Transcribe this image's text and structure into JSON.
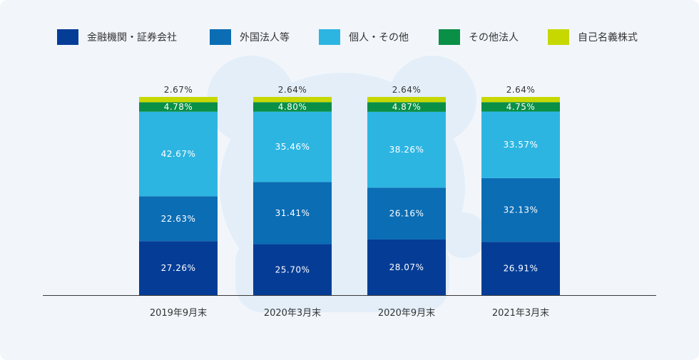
{
  "chart_data": {
    "type": "bar",
    "stacked": true,
    "percent_stacked": true,
    "legend_position": "top",
    "grid": false,
    "ylim": [
      0,
      100
    ],
    "categories": [
      "2019年9月末",
      "2020年3月末",
      "2020年9月末",
      "2021年3月末"
    ],
    "series": [
      {
        "name": "金融機関・証券会社",
        "color": "#053d96",
        "values": [
          27.26,
          25.7,
          28.07,
          26.91
        ],
        "labels": [
          "27.26%",
          "25.70%",
          "28.07%",
          "26.91%"
        ]
      },
      {
        "name": "外国法人等",
        "color": "#0b6db4",
        "values": [
          22.63,
          31.41,
          26.16,
          32.13
        ],
        "labels": [
          "22.63%",
          "31.41%",
          "26.16%",
          "32.13%"
        ]
      },
      {
        "name": "個人・その他",
        "color": "#2db5e2",
        "values": [
          42.67,
          35.46,
          38.26,
          33.57
        ],
        "labels": [
          "42.67%",
          "35.46%",
          "38.26%",
          "33.57%"
        ]
      },
      {
        "name": "その他法人",
        "color": "#0a8f47",
        "values": [
          4.78,
          4.8,
          4.87,
          4.75
        ],
        "labels": [
          "4.78%",
          "4.80%",
          "4.87%",
          "4.75%"
        ]
      },
      {
        "name": "自己名義株式",
        "color": "#c6d800",
        "values": [
          2.67,
          2.64,
          2.64,
          2.64
        ],
        "labels": [
          "2.67%",
          "2.64%",
          "2.64%",
          "2.64%"
        ]
      }
    ]
  },
  "colors": {
    "background": "#f2f6fb",
    "watermark": "#e3eef8",
    "axis": "#3a3a3a"
  },
  "icons": {
    "watermark": "mascot-silhouette-icon"
  }
}
